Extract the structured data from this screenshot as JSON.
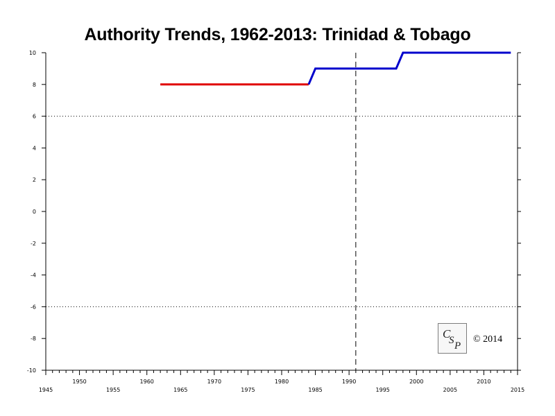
{
  "chart_data": {
    "type": "line",
    "title": "Authority Trends, 1962-2013: Trinidad & Tobago",
    "xlim": [
      1945,
      2015
    ],
    "ylim": [
      -10,
      10
    ],
    "x_ticks_major": [
      1945,
      1950,
      1955,
      1960,
      1965,
      1970,
      1975,
      1980,
      1985,
      1990,
      1995,
      2000,
      2005,
      2010,
      2015
    ],
    "y_ticks": [
      -10,
      -8,
      -6,
      -4,
      -2,
      0,
      2,
      4,
      6,
      8,
      10
    ],
    "reference_lines": {
      "horizontal_dotted": [
        6,
        -6
      ],
      "vertical_dashed": [
        1991
      ]
    },
    "series": [
      {
        "color": "#e00000",
        "points": [
          [
            1962,
            8
          ],
          [
            1984,
            8
          ]
        ]
      },
      {
        "color": "#0000cc",
        "points": [
          [
            1984,
            8
          ],
          [
            1985,
            9
          ],
          [
            1997,
            9
          ],
          [
            1998,
            10
          ],
          [
            2014,
            10
          ]
        ]
      }
    ],
    "logo_text": "CSP",
    "copyright": "© 2014"
  }
}
